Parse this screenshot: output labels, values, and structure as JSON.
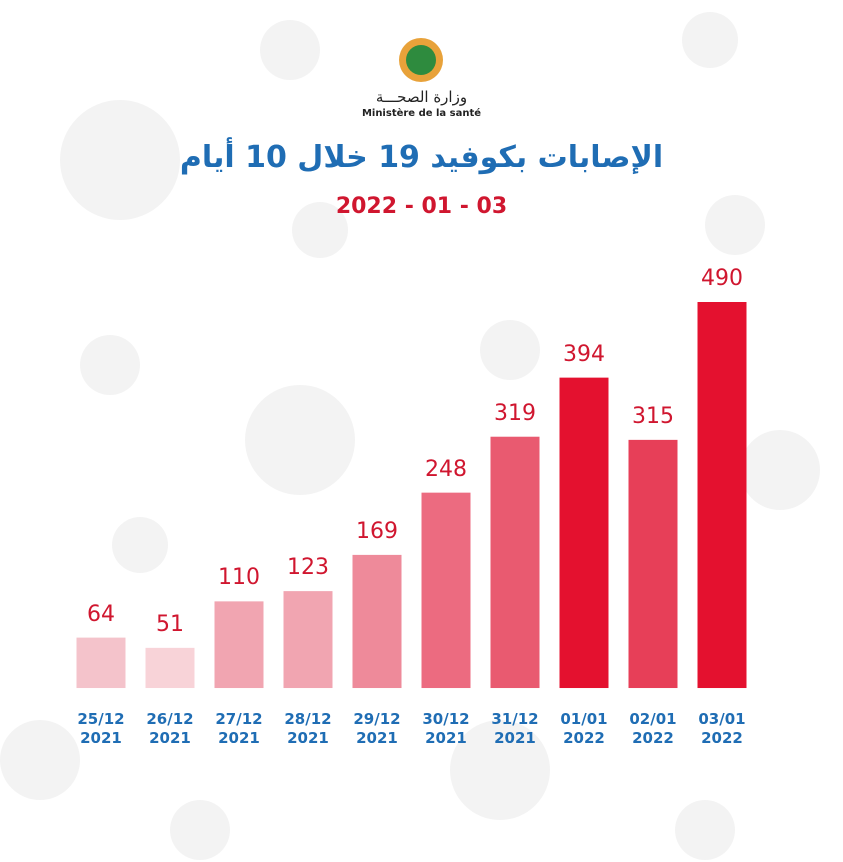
{
  "header": {
    "ministry_ar": "وزارة الصحـــة",
    "ministry_fr": "Ministère de la santé"
  },
  "chart_data": {
    "type": "bar",
    "title": "الإصابات بكوفيد 19 خلال 10 أيام",
    "subtitle": "2022 - 01 - 03",
    "categories": [
      "25/12\n2021",
      "26/12\n2021",
      "27/12\n2021",
      "28/12\n2021",
      "29/12\n2021",
      "30/12\n2021",
      "31/12\n2021",
      "01/01\n2022",
      "02/01\n2022",
      "03/01\n2022"
    ],
    "values": [
      64,
      51,
      110,
      123,
      169,
      248,
      319,
      394,
      315,
      490
    ],
    "colors": [
      "#f4c3cb",
      "#f8d3d8",
      "#f1a5b1",
      "#f1a5b1",
      "#ee8a9a",
      "#ec6b80",
      "#e95a70",
      "#e4112f",
      "#e73f58",
      "#e4112f"
    ],
    "ylim": [
      -19,
      490
    ]
  }
}
